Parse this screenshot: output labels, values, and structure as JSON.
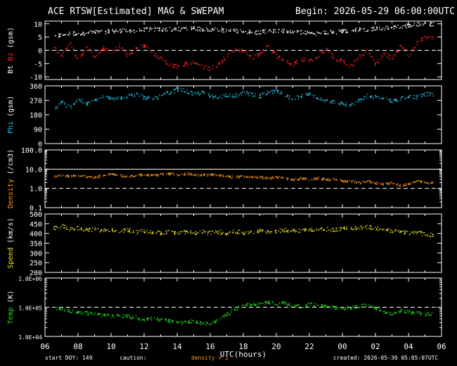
{
  "header": {
    "title": "ACE RTSW[Estimated] MAG & SWEPAM",
    "begin": "Begin: 2026-05-29 06:00:00UTC"
  },
  "footer": {
    "start_doy": "start DOY: 149",
    "caution": "caution:",
    "density_note": "density < 1",
    "created": "created: 2026-05-30 05:05:07UTC"
  },
  "colors": {
    "background": "#000000",
    "frame": "#ffffff",
    "bz": "#ff2020",
    "bt": "#ffffff",
    "phi": "#22c4e8",
    "density": "#ff9a1a",
    "speed": "#e6e620",
    "temp": "#22dd22"
  },
  "chart_data": {
    "type": "scatter",
    "xlabel": "UTC(hours)",
    "x_ticks": [
      "06",
      "08",
      "10",
      "12",
      "14",
      "16",
      "18",
      "20",
      "22",
      "00",
      "02",
      "04",
      "06"
    ],
    "x_hours_start": 6,
    "x_hours_end": 30,
    "panels": [
      {
        "id": "mag",
        "ylabel": "Bt Bz (gsm)",
        "ylabel_parts": [
          {
            "text": "Bt",
            "color": "#ffffff"
          },
          {
            "text": "Bz",
            "color": "#ff2020"
          },
          {
            "text": "(gsm)",
            "color": "#ffffff"
          }
        ],
        "ylim": [
          -11,
          11
        ],
        "scale": "linear",
        "y_ticks": [
          "10",
          "5",
          "0",
          "-5",
          "-10"
        ],
        "y_tick_values": [
          10,
          5,
          0,
          -5,
          -10
        ],
        "dashed_lines": [
          0
        ],
        "series": [
          {
            "name": "Bt",
            "color": "#ffffff",
            "x": [
              6.5,
              7,
              7.5,
              8,
              8.5,
              9,
              9.5,
              10,
              10.5,
              11,
              11.5,
              12,
              12.5,
              13,
              13.5,
              14,
              14.5,
              15,
              15.5,
              16,
              16.5,
              17,
              17.5,
              18,
              18.5,
              19,
              19.5,
              20,
              20.5,
              21,
              21.5,
              22,
              22.5,
              23,
              23.5,
              24,
              24.5,
              25,
              25.5,
              26,
              26.5,
              27,
              27.5,
              28,
              28.5,
              29
            ],
            "y": [
              5,
              6,
              6.5,
              6.5,
              6.5,
              7,
              7,
              7.5,
              7.5,
              7.5,
              7.5,
              8,
              8,
              8,
              8,
              8,
              8.5,
              8.5,
              8,
              8,
              8,
              7.5,
              7.5,
              7.5,
              7,
              7,
              7.5,
              7.5,
              7.5,
              7,
              7,
              6.5,
              6.5,
              7,
              7,
              7.5,
              7.5,
              8,
              8,
              8.5,
              8.5,
              9,
              9,
              9.5,
              10,
              10
            ]
          },
          {
            "name": "Bz",
            "color": "#ff2020",
            "x": [
              6.5,
              7,
              7.5,
              8,
              8.5,
              9,
              9.5,
              10,
              10.5,
              11,
              11.5,
              12,
              12.5,
              13,
              13.5,
              14,
              14.5,
              15,
              15.5,
              16,
              16.5,
              17,
              17.5,
              18,
              18.5,
              19,
              19.5,
              20,
              20.5,
              21,
              21.5,
              22,
              22.5,
              23,
              23.5,
              24,
              24.5,
              25,
              25.5,
              26,
              26.5,
              27,
              27.5,
              28,
              28.5,
              29
            ],
            "y": [
              1,
              -2,
              3,
              -4,
              2,
              -3,
              1,
              -1,
              2,
              -2,
              1,
              2,
              -1,
              -3,
              -5,
              -6,
              -5,
              -4,
              -6,
              -7,
              -5,
              -2,
              1,
              0,
              -3,
              -1,
              2,
              -2,
              -4,
              -5,
              -3,
              -4,
              -2,
              1,
              -3,
              -4,
              -6,
              -2,
              0,
              -5,
              -1,
              -3,
              2,
              -2,
              3,
              5
            ]
          }
        ]
      },
      {
        "id": "phi",
        "ylabel": "Phi (gsm)",
        "ylabel_parts": [
          {
            "text": "Phi",
            "color": "#22c4e8"
          },
          {
            "text": "(gsm)",
            "color": "#ffffff"
          }
        ],
        "ylim": [
          0,
          360
        ],
        "scale": "linear",
        "y_ticks": [
          "360",
          "270",
          "180",
          "90",
          "0"
        ],
        "y_tick_values": [
          360,
          270,
          180,
          90,
          0
        ],
        "dashed_lines": [],
        "series": [
          {
            "name": "Phi",
            "color": "#22c4e8",
            "x": [
              6.5,
              7,
              7.5,
              8,
              8.5,
              9,
              9.5,
              10,
              10.5,
              11,
              11.5,
              12,
              12.5,
              13,
              13.5,
              14,
              14.5,
              15,
              15.5,
              16,
              16.5,
              17,
              17.5,
              18,
              18.5,
              19,
              19.5,
              20,
              20.5,
              21,
              21.5,
              22,
              22.5,
              23,
              23.5,
              24,
              24.5,
              25,
              25.5,
              26,
              26.5,
              27,
              27.5,
              28,
              28.5,
              29
            ],
            "y": [
              210,
              260,
              230,
              280,
              250,
              270,
              300,
              280,
              290,
              300,
              310,
              290,
              280,
              300,
              320,
              340,
              330,
              310,
              320,
              300,
              290,
              310,
              300,
              320,
              310,
              300,
              320,
              330,
              300,
              280,
              300,
              310,
              290,
              270,
              260,
              250,
              240,
              270,
              300,
              290,
              280,
              270,
              280,
              300,
              290,
              310
            ]
          }
        ]
      },
      {
        "id": "density",
        "ylabel": "Density (/cm3)",
        "ylabel_parts": [
          {
            "text": "Density",
            "color": "#ff9a1a"
          },
          {
            "text": "(/cm3)",
            "color": "#ffffff"
          }
        ],
        "ylim": [
          0.1,
          100
        ],
        "scale": "log",
        "y_ticks": [
          "100.0",
          "10.0",
          "1.0",
          "0.1"
        ],
        "y_tick_values": [
          100,
          10,
          1,
          0.1
        ],
        "dashed_lines": [
          1
        ],
        "solid_lines": [
          10
        ],
        "series": [
          {
            "name": "Density",
            "color": "#ff9a1a",
            "x": [
              6.5,
              7,
              7.5,
              8,
              8.5,
              9,
              9.5,
              10,
              10.5,
              11,
              11.5,
              12,
              12.5,
              13,
              13.5,
              14,
              14.5,
              15,
              15.5,
              16,
              16.5,
              17,
              17.5,
              18,
              18.5,
              19,
              19.5,
              20,
              20.5,
              21,
              21.5,
              22,
              22.5,
              23,
              23.5,
              24,
              24.5,
              25,
              25.5,
              26,
              26.5,
              27,
              27.5,
              28,
              28.5,
              29
            ],
            "y": [
              4,
              5,
              4.5,
              5,
              4.5,
              4,
              5,
              5.5,
              5,
              4.5,
              5,
              5.5,
              5,
              5.5,
              6,
              5.5,
              6,
              5.5,
              5,
              5.5,
              5,
              4.5,
              4,
              4.5,
              4,
              4,
              3.5,
              4,
              3.5,
              3,
              3.5,
              3,
              3.5,
              3,
              3,
              2.5,
              2.5,
              2,
              2.5,
              2,
              1.8,
              2,
              1.5,
              1.8,
              2.5,
              2
            ]
          }
        ]
      },
      {
        "id": "speed",
        "ylabel": "Speed (km/s)",
        "ylabel_parts": [
          {
            "text": "Speed",
            "color": "#e6e620"
          },
          {
            "text": "(km/s)",
            "color": "#ffffff"
          }
        ],
        "ylim": [
          200,
          500
        ],
        "scale": "linear",
        "y_ticks": [
          "500",
          "450",
          "400",
          "350",
          "300",
          "250",
          "200"
        ],
        "y_tick_values": [
          500,
          450,
          400,
          350,
          300,
          250,
          200
        ],
        "dashed_lines": [],
        "series": [
          {
            "name": "Speed",
            "color": "#e6e620",
            "x": [
              6.5,
              7,
              7.5,
              8,
              8.5,
              9,
              9.5,
              10,
              10.5,
              11,
              11.5,
              12,
              12.5,
              13,
              13.5,
              14,
              14.5,
              15,
              15.5,
              16,
              16.5,
              17,
              17.5,
              18,
              18.5,
              19,
              19.5,
              20,
              20.5,
              21,
              21.5,
              22,
              22.5,
              23,
              23.5,
              24,
              24.5,
              25,
              25.5,
              26,
              26.5,
              27,
              27.5,
              28,
              28.5,
              29
            ],
            "y": [
              430,
              440,
              425,
              430,
              420,
              425,
              415,
              420,
              415,
              420,
              410,
              415,
              410,
              405,
              410,
              405,
              410,
              405,
              410,
              405,
              410,
              405,
              410,
              405,
              410,
              415,
              410,
              415,
              420,
              415,
              420,
              425,
              420,
              425,
              420,
              430,
              425,
              430,
              435,
              430,
              420,
              415,
              410,
              405,
              410,
              395
            ]
          }
        ]
      },
      {
        "id": "temp",
        "ylabel": "Temp (K)",
        "ylabel_parts": [
          {
            "text": "Temp",
            "color": "#22dd22"
          },
          {
            "text": "(K)",
            "color": "#ffffff"
          }
        ],
        "ylim": [
          10000,
          1000000
        ],
        "scale": "log",
        "y_ticks": [
          "1.0E+06",
          "1.0E+05",
          "1.0E+04"
        ],
        "y_tick_values": [
          1000000,
          100000,
          10000
        ],
        "dashed_lines": [
          100000
        ],
        "series": [
          {
            "name": "Temp",
            "color": "#22dd22",
            "x": [
              6.5,
              7,
              7.5,
              8,
              8.5,
              9,
              9.5,
              10,
              10.5,
              11,
              11.5,
              12,
              12.5,
              13,
              13.5,
              14,
              14.5,
              15,
              15.5,
              16,
              16.5,
              17,
              17.5,
              18,
              18.5,
              19,
              19.5,
              20,
              20.5,
              21,
              21.5,
              22,
              22.5,
              23,
              23.5,
              24,
              24.5,
              25,
              25.5,
              26,
              26.5,
              27,
              27.5,
              28,
              28.5,
              29
            ],
            "y": [
              100000,
              90000,
              80000,
              70000,
              65000,
              60000,
              55000,
              50000,
              55000,
              50000,
              45000,
              40000,
              42000,
              38000,
              35000,
              30000,
              32000,
              35000,
              30000,
              28000,
              40000,
              60000,
              90000,
              120000,
              130000,
              140000,
              150000,
              130000,
              140000,
              120000,
              110000,
              130000,
              120000,
              110000,
              100000,
              95000,
              100000,
              110000,
              120000,
              100000,
              70000,
              60000,
              80000,
              70000,
              65000,
              60000
            ]
          }
        ]
      }
    ]
  }
}
